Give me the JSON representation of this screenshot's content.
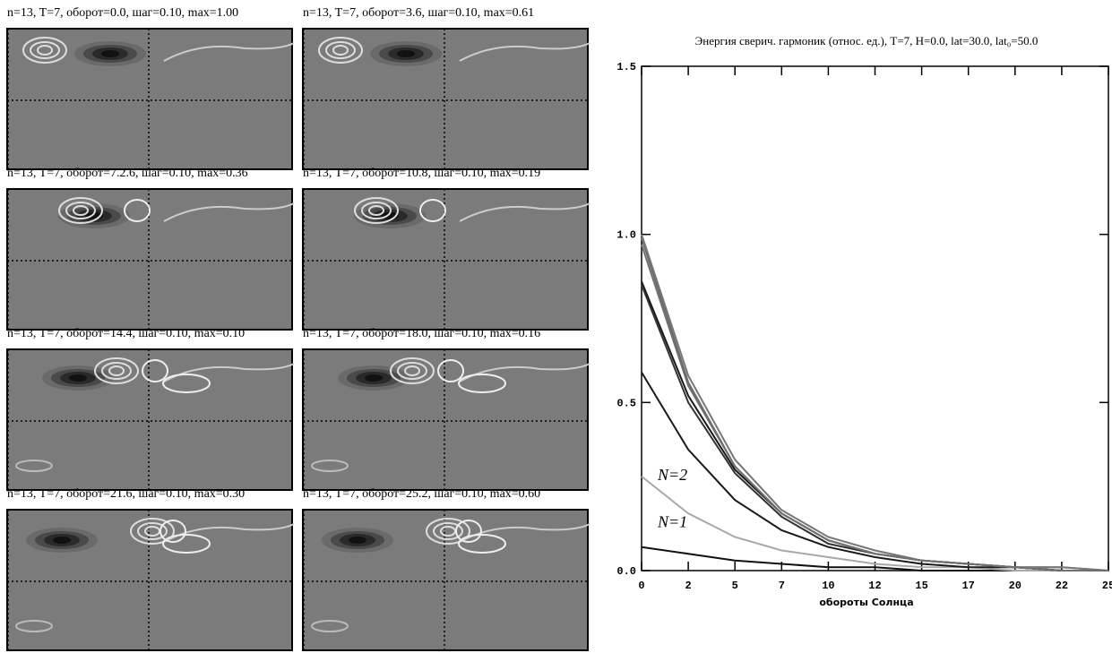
{
  "panels": [
    {
      "title": "n=13, T=7, оборот=0.0, шаг=0.10, max=1.00"
    },
    {
      "title": "n=13, T=7, оборот=3.6, шаг=0.10, max=0.61"
    },
    {
      "title": "n=13, T=7, оборот=7.2.6, шаг=0.10, max=0.36"
    },
    {
      "title": "n=13, T=7, оборот=10.8, шаг=0.10, max=0.19"
    },
    {
      "title": "n=13, T=7, оборот=14.4, шаг=0.10, max=0.10"
    },
    {
      "title": "n=13, T=7, оборот=18.0, шаг=0.10, max=0.16"
    },
    {
      "title": "n=13, T=7, оборот=21.6, шаг=0.10, max=0.30"
    },
    {
      "title": "n=13, T=7, оборот=25.2, шаг=0.10, max=0.60"
    }
  ],
  "chart_data": {
    "type": "line",
    "title": "Энергия сверич. гармоник (относ. ед.), T=7, H=0.0, lat=30.0, lat₀=50.0",
    "x_label": "обороты Солнца",
    "x": [
      0,
      2.5,
      5,
      7.5,
      10,
      12.5,
      15,
      17.5,
      20,
      22.5,
      25
    ],
    "xlim": [
      0,
      25
    ],
    "xticks": [
      0,
      {
        "value": 2.5,
        "label": "2"
      },
      5,
      {
        "value": 7.5,
        "label": "7"
      },
      10,
      {
        "value": 12.5,
        "label": "12"
      },
      15,
      {
        "value": 17.5,
        "label": "17"
      },
      20,
      {
        "value": 22.5,
        "label": "22"
      },
      25
    ],
    "ylim": [
      0,
      1.5
    ],
    "yticks": [
      {
        "value": 0,
        "label": "0.0"
      },
      0.5,
      {
        "value": 1,
        "label": "1.0"
      },
      1.5
    ],
    "series": [
      {
        "name": "N=1",
        "color": "#111111",
        "values": [
          0.07,
          0.05,
          0.03,
          0.02,
          0.01,
          0.01,
          0,
          0,
          0,
          0,
          0
        ]
      },
      {
        "name": "N=2",
        "color": "#a8a8a8",
        "values": [
          0.28,
          0.17,
          0.1,
          0.06,
          0.04,
          0.02,
          0.01,
          0.01,
          0,
          0,
          0
        ]
      },
      {
        "color": "#1a1a1a",
        "values": [
          0.59,
          0.36,
          0.21,
          0.12,
          0.07,
          0.04,
          0.02,
          0.01,
          0.01,
          0,
          0
        ]
      },
      {
        "color": "#1a1a1a",
        "values": [
          0.86,
          0.52,
          0.3,
          0.17,
          0.09,
          0.05,
          0.03,
          0.02,
          0.01,
          0,
          0
        ]
      },
      {
        "color": "#333333",
        "values": [
          0.85,
          0.5,
          0.29,
          0.16,
          0.08,
          0.05,
          0.03,
          0.02,
          0.01,
          0,
          0
        ]
      },
      {
        "color": "#6a6a6a",
        "values": [
          0.99,
          0.56,
          0.31,
          0.17,
          0.09,
          0.05,
          0.03,
          0.02,
          0.01,
          0.01,
          0
        ]
      },
      {
        "color": "#777777",
        "values": [
          1.0,
          0.58,
          0.33,
          0.18,
          0.1,
          0.06,
          0.03,
          0.02,
          0.01,
          0.01,
          0
        ]
      },
      {
        "color": "#707070",
        "values": [
          0.97,
          0.55,
          0.31,
          0.17,
          0.09,
          0.05,
          0.03,
          0.02,
          0.01,
          0,
          0
        ]
      }
    ]
  }
}
